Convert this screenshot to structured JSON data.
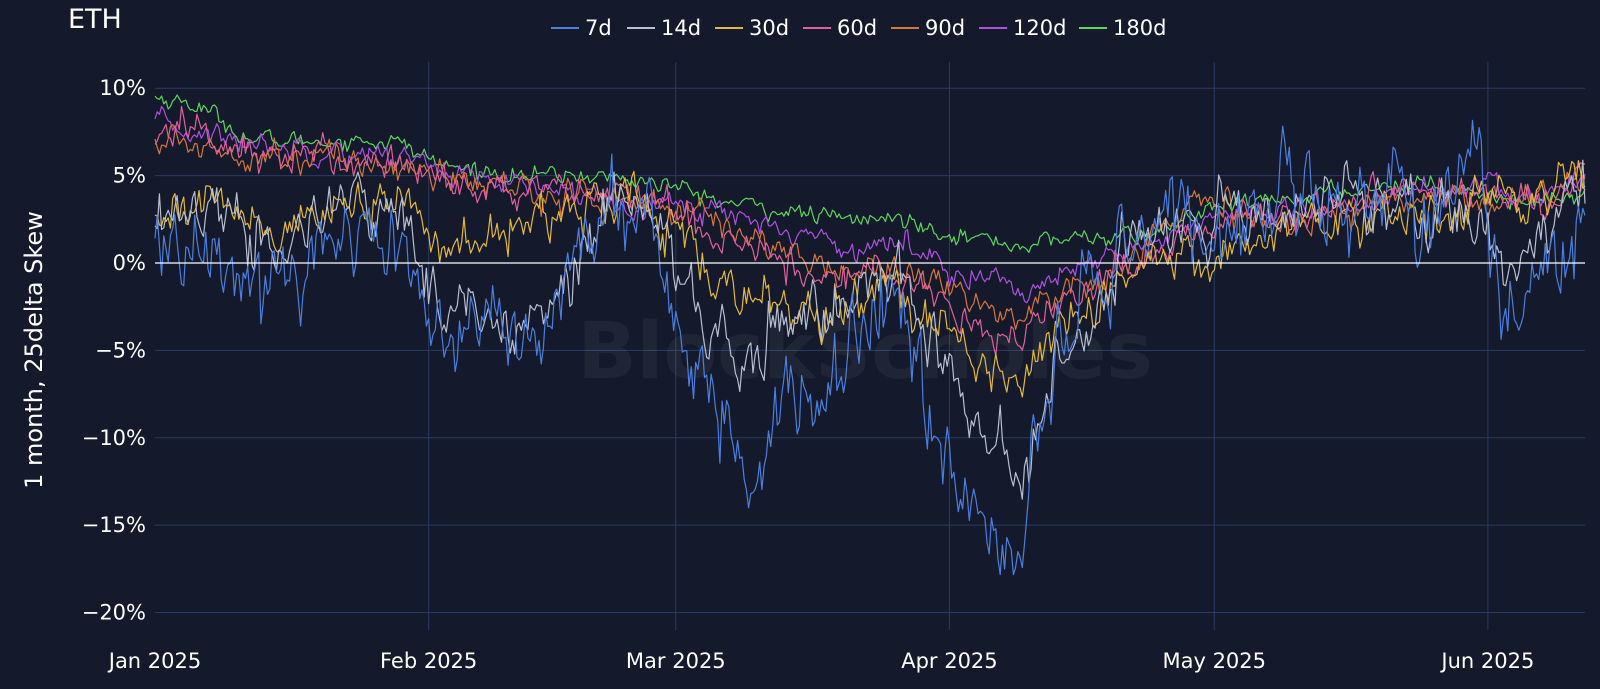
{
  "chart_data": {
    "type": "line",
    "title": "ETH",
    "xlabel": "",
    "ylabel": "1 month, 25delta Skew",
    "watermark": "BlockScholes",
    "x_range": [
      "2025-01-01",
      "2025-06-12"
    ],
    "x_ticks": [
      {
        "date": "2025-01-01",
        "label": "Jan 2025"
      },
      {
        "date": "2025-02-01",
        "label": "Feb 2025"
      },
      {
        "date": "2025-03-01",
        "label": "Mar 2025"
      },
      {
        "date": "2025-04-01",
        "label": "Apr 2025"
      },
      {
        "date": "2025-05-01",
        "label": "May 2025"
      },
      {
        "date": "2025-06-01",
        "label": "Jun 2025"
      }
    ],
    "ylim": [
      -21,
      11.5
    ],
    "y_ticks": [
      {
        "value": 10,
        "label": "10%"
      },
      {
        "value": 5,
        "label": "5%"
      },
      {
        "value": 0,
        "label": "0%"
      },
      {
        "value": -5,
        "label": "−5%"
      },
      {
        "value": -10,
        "label": "−10%"
      },
      {
        "value": -15,
        "label": "−15%"
      },
      {
        "value": -20,
        "label": "−20%"
      }
    ],
    "grid": true,
    "legend_position": "top",
    "series": [
      {
        "name": "7d",
        "color": "#4a7fe0",
        "noise": 2.6,
        "anchors": [
          [
            "2025-01-01",
            1.0
          ],
          [
            "2025-01-08",
            1.5
          ],
          [
            "2025-01-14",
            -1.5
          ],
          [
            "2025-01-22",
            2.0
          ],
          [
            "2025-01-29",
            1.0
          ],
          [
            "2025-02-03",
            -4.5
          ],
          [
            "2025-02-08",
            -3.0
          ],
          [
            "2025-02-12",
            -5.0
          ],
          [
            "2025-02-17",
            -1.0
          ],
          [
            "2025-02-21",
            3.0
          ],
          [
            "2025-02-26",
            2.0
          ],
          [
            "2025-03-04",
            -7.0
          ],
          [
            "2025-03-09",
            -12.0
          ],
          [
            "2025-03-13",
            -8.0
          ],
          [
            "2025-03-18",
            -8.0
          ],
          [
            "2025-03-22",
            -4.0
          ],
          [
            "2025-03-26",
            -1.0
          ],
          [
            "2025-03-30",
            -9.0
          ],
          [
            "2025-04-03",
            -14.0
          ],
          [
            "2025-04-07",
            -15.0
          ],
          [
            "2025-04-09",
            -17.0
          ],
          [
            "2025-04-12",
            -8.0
          ],
          [
            "2025-04-16",
            -2.0
          ],
          [
            "2025-04-20",
            -1.0
          ],
          [
            "2025-04-24",
            2.5
          ],
          [
            "2025-04-28",
            3.0
          ],
          [
            "2025-05-02",
            1.5
          ],
          [
            "2025-05-08",
            4.0
          ],
          [
            "2025-05-15",
            3.0
          ],
          [
            "2025-05-21",
            4.5
          ],
          [
            "2025-05-27",
            3.0
          ],
          [
            "2025-05-31",
            6.0
          ],
          [
            "2025-06-03",
            -2.0
          ],
          [
            "2025-06-06",
            -2.0
          ],
          [
            "2025-06-09",
            1.0
          ],
          [
            "2025-06-12",
            4.0
          ]
        ]
      },
      {
        "name": "14d",
        "color": "#b8bfd0",
        "noise": 1.8,
        "anchors": [
          [
            "2025-01-01",
            2.0
          ],
          [
            "2025-01-08",
            3.5
          ],
          [
            "2025-01-15",
            0.5
          ],
          [
            "2025-01-22",
            3.5
          ],
          [
            "2025-01-29",
            2.5
          ],
          [
            "2025-02-03",
            -2.5
          ],
          [
            "2025-02-10",
            -3.0
          ],
          [
            "2025-02-17",
            -1.0
          ],
          [
            "2025-02-21",
            3.5
          ],
          [
            "2025-02-26",
            3.0
          ],
          [
            "2025-03-04",
            -3.5
          ],
          [
            "2025-03-09",
            -6.0
          ],
          [
            "2025-03-15",
            -3.0
          ],
          [
            "2025-03-20",
            -3.0
          ],
          [
            "2025-03-26",
            0.0
          ],
          [
            "2025-03-31",
            -6.0
          ],
          [
            "2025-04-03",
            -8.5
          ],
          [
            "2025-04-07",
            -10.5
          ],
          [
            "2025-04-09",
            -13.0
          ],
          [
            "2025-04-13",
            -6.0
          ],
          [
            "2025-04-18",
            -2.0
          ],
          [
            "2025-04-24",
            2.0
          ],
          [
            "2025-04-30",
            2.5
          ],
          [
            "2025-05-08",
            3.0
          ],
          [
            "2025-05-15",
            3.5
          ],
          [
            "2025-05-22",
            3.5
          ],
          [
            "2025-05-29",
            3.5
          ],
          [
            "2025-06-03",
            -0.5
          ],
          [
            "2025-06-08",
            1.0
          ],
          [
            "2025-06-12",
            4.5
          ]
        ]
      },
      {
        "name": "30d",
        "color": "#e4b83a",
        "noise": 1.3,
        "anchors": [
          [
            "2025-01-01",
            3.0
          ],
          [
            "2025-01-08",
            3.5
          ],
          [
            "2025-01-15",
            2.0
          ],
          [
            "2025-01-22",
            3.0
          ],
          [
            "2025-01-29",
            3.5
          ],
          [
            "2025-02-04",
            0.5
          ],
          [
            "2025-02-10",
            2.0
          ],
          [
            "2025-02-17",
            3.0
          ],
          [
            "2025-02-24",
            4.0
          ],
          [
            "2025-03-01",
            2.0
          ],
          [
            "2025-03-05",
            -1.0
          ],
          [
            "2025-03-10",
            -2.0
          ],
          [
            "2025-03-17",
            -3.5
          ],
          [
            "2025-03-24",
            -1.0
          ],
          [
            "2025-03-30",
            -3.0
          ],
          [
            "2025-04-04",
            -5.5
          ],
          [
            "2025-04-09",
            -7.0
          ],
          [
            "2025-04-13",
            -4.0
          ],
          [
            "2025-04-18",
            -2.0
          ],
          [
            "2025-04-24",
            0.5
          ],
          [
            "2025-05-01",
            0.5
          ],
          [
            "2025-05-08",
            2.0
          ],
          [
            "2025-05-15",
            2.5
          ],
          [
            "2025-05-22",
            3.0
          ],
          [
            "2025-05-29",
            3.5
          ],
          [
            "2025-06-05",
            3.0
          ],
          [
            "2025-06-12",
            5.5
          ]
        ]
      },
      {
        "name": "60d",
        "color": "#e0609a",
        "noise": 1.0,
        "anchors": [
          [
            "2025-01-01",
            7.0
          ],
          [
            "2025-01-04",
            8.0
          ],
          [
            "2025-01-10",
            6.5
          ],
          [
            "2025-01-18",
            6.0
          ],
          [
            "2025-01-25",
            6.0
          ],
          [
            "2025-01-30",
            5.5
          ],
          [
            "2025-02-05",
            4.5
          ],
          [
            "2025-02-12",
            4.0
          ],
          [
            "2025-02-19",
            4.0
          ],
          [
            "2025-02-26",
            3.5
          ],
          [
            "2025-03-05",
            2.0
          ],
          [
            "2025-03-12",
            0.5
          ],
          [
            "2025-03-19",
            -1.0
          ],
          [
            "2025-03-26",
            -0.5
          ],
          [
            "2025-03-31",
            -2.0
          ],
          [
            "2025-04-05",
            -3.5
          ],
          [
            "2025-04-09",
            -4.5
          ],
          [
            "2025-04-14",
            -2.0
          ],
          [
            "2025-04-20",
            -0.5
          ],
          [
            "2025-04-27",
            1.5
          ],
          [
            "2025-05-04",
            2.5
          ],
          [
            "2025-05-11",
            3.0
          ],
          [
            "2025-05-18",
            3.5
          ],
          [
            "2025-05-25",
            4.5
          ],
          [
            "2025-06-01",
            4.0
          ],
          [
            "2025-06-07",
            3.5
          ],
          [
            "2025-06-12",
            5.5
          ]
        ]
      },
      {
        "name": "90d",
        "color": "#d9753a",
        "noise": 0.9,
        "anchors": [
          [
            "2025-01-01",
            7.0
          ],
          [
            "2025-01-10",
            6.5
          ],
          [
            "2025-01-20",
            6.0
          ],
          [
            "2025-01-30",
            5.5
          ],
          [
            "2025-02-06",
            4.5
          ],
          [
            "2025-02-15",
            4.0
          ],
          [
            "2025-02-25",
            3.5
          ],
          [
            "2025-03-05",
            2.5
          ],
          [
            "2025-03-12",
            1.0
          ],
          [
            "2025-03-19",
            -0.5
          ],
          [
            "2025-03-26",
            0.0
          ],
          [
            "2025-04-01",
            -1.5
          ],
          [
            "2025-04-05",
            -2.5
          ],
          [
            "2025-04-09",
            -3.0
          ],
          [
            "2025-04-15",
            -1.5
          ],
          [
            "2025-04-22",
            0.5
          ],
          [
            "2025-04-28",
            3.5
          ],
          [
            "2025-05-05",
            2.5
          ],
          [
            "2025-05-12",
            2.5
          ],
          [
            "2025-05-20",
            3.5
          ],
          [
            "2025-05-27",
            4.0
          ],
          [
            "2025-06-03",
            3.5
          ],
          [
            "2025-06-12",
            4.5
          ]
        ]
      },
      {
        "name": "120d",
        "color": "#b04fe0",
        "noise": 0.7,
        "anchors": [
          [
            "2025-01-01",
            8.0
          ],
          [
            "2025-01-10",
            7.0
          ],
          [
            "2025-01-20",
            6.5
          ],
          [
            "2025-01-30",
            6.0
          ],
          [
            "2025-02-08",
            4.5
          ],
          [
            "2025-02-18",
            4.0
          ],
          [
            "2025-02-26",
            3.5
          ],
          [
            "2025-03-06",
            3.0
          ],
          [
            "2025-03-13",
            2.0
          ],
          [
            "2025-03-20",
            1.0
          ],
          [
            "2025-03-27",
            1.0
          ],
          [
            "2025-04-03",
            -0.5
          ],
          [
            "2025-04-09",
            -1.5
          ],
          [
            "2025-04-16",
            -0.5
          ],
          [
            "2025-04-23",
            1.0
          ],
          [
            "2025-04-30",
            2.5
          ],
          [
            "2025-05-07",
            2.5
          ],
          [
            "2025-05-14",
            3.0
          ],
          [
            "2025-05-22",
            4.0
          ],
          [
            "2025-05-30",
            4.5
          ],
          [
            "2025-06-05",
            3.5
          ],
          [
            "2025-06-12",
            5.0
          ]
        ]
      },
      {
        "name": "180d",
        "color": "#5cd65c",
        "noise": 0.5,
        "anchors": [
          [
            "2025-01-01",
            9.5
          ],
          [
            "2025-01-06",
            9.0
          ],
          [
            "2025-01-12",
            7.0
          ],
          [
            "2025-01-20",
            7.0
          ],
          [
            "2025-01-28",
            7.0
          ],
          [
            "2025-02-03",
            5.5
          ],
          [
            "2025-02-12",
            5.0
          ],
          [
            "2025-02-20",
            5.0
          ],
          [
            "2025-02-28",
            4.5
          ],
          [
            "2025-03-06",
            3.5
          ],
          [
            "2025-03-13",
            3.0
          ],
          [
            "2025-03-20",
            2.5
          ],
          [
            "2025-03-27",
            2.5
          ],
          [
            "2025-04-03",
            1.5
          ],
          [
            "2025-04-09",
            1.0
          ],
          [
            "2025-04-16",
            1.5
          ],
          [
            "2025-04-23",
            1.5
          ],
          [
            "2025-04-30",
            3.0
          ],
          [
            "2025-05-07",
            3.5
          ],
          [
            "2025-05-14",
            4.0
          ],
          [
            "2025-05-21",
            4.5
          ],
          [
            "2025-05-28",
            4.5
          ],
          [
            "2025-06-04",
            3.5
          ],
          [
            "2025-06-12",
            4.0
          ]
        ]
      }
    ]
  }
}
